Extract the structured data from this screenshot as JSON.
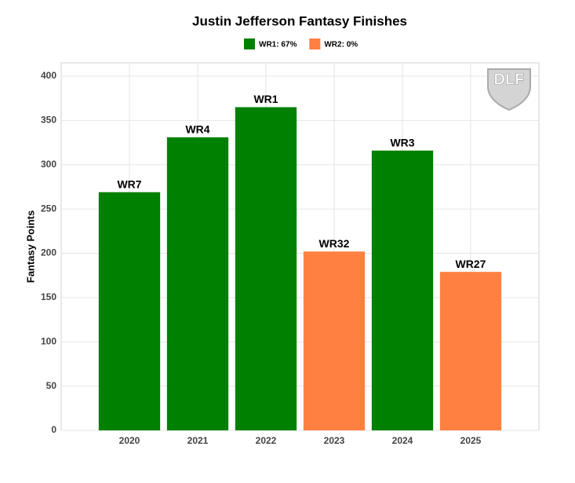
{
  "chart_data": {
    "type": "bar",
    "title": "Justin Jefferson Fantasy Finishes",
    "y_label": "Fantasy Points",
    "categories": [
      "2020",
      "2021",
      "2022",
      "2023",
      "2024",
      "2025"
    ],
    "values": [
      269,
      331,
      365,
      202,
      316,
      179
    ],
    "colors": [
      "#008000",
      "#008000",
      "#008000",
      "#ff8040",
      "#008000",
      "#ff8040"
    ],
    "bar_labels": [
      "WR7",
      "WR4",
      "WR1",
      "WR32",
      "WR3",
      "WR27"
    ],
    "legend": [
      {
        "name": "WR1: 67%",
        "color": "#008000"
      },
      {
        "name": "WR2: 0%",
        "color": "#ff8040"
      }
    ],
    "legend_position": "top",
    "ylim": [
      0,
      400
    ],
    "yticks": [
      0,
      50,
      100,
      150,
      200,
      250,
      300,
      350,
      400
    ],
    "grid": true,
    "watermark": "DLF"
  }
}
